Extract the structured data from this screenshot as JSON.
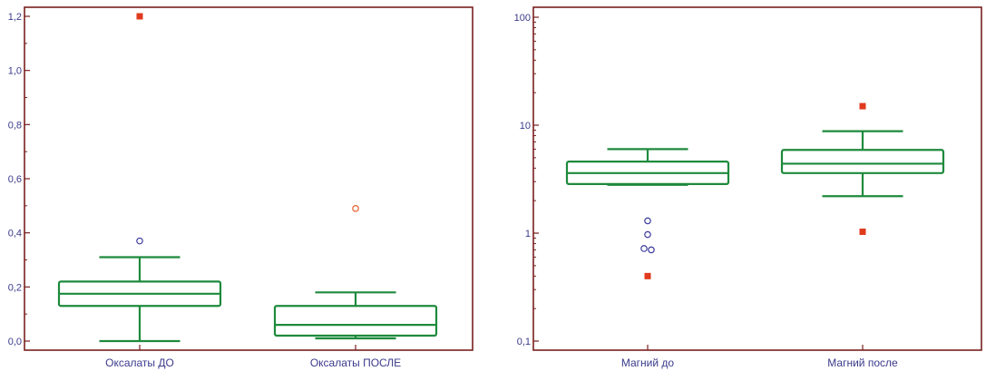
{
  "chart_data": [
    {
      "type": "box",
      "scale": "linear",
      "ylim": [
        0.0,
        1.2
      ],
      "yticks": [
        {
          "value": 0.0,
          "label": "0,0"
        },
        {
          "value": 0.2,
          "label": "0,2"
        },
        {
          "value": 0.4,
          "label": "0,4"
        },
        {
          "value": 0.6,
          "label": "0,6"
        },
        {
          "value": 0.8,
          "label": "0,8"
        },
        {
          "value": 1.0,
          "label": "1,0"
        },
        {
          "value": 1.2,
          "label": "1,2"
        }
      ],
      "categories": [
        "Оксалаты ДО",
        "Оксалаты ПОСЛЕ"
      ],
      "boxes": [
        {
          "whisker_low": 0.0,
          "q1": 0.13,
          "median": 0.175,
          "q3": 0.22,
          "whisker_high": 0.31,
          "outliers": [
            0.37
          ],
          "far_outliers": [
            1.2
          ]
        },
        {
          "whisker_low": 0.01,
          "q1": 0.02,
          "median": 0.06,
          "q3": 0.13,
          "whisker_high": 0.18,
          "outliers": [
            0.49
          ],
          "far_outliers": []
        }
      ],
      "colors": {
        "box": "#1e8a3c",
        "frame": "#7a1f1f",
        "outlier": "#3a3a9c",
        "outlier_alt": "#e8622e",
        "far_outlier": "#e03a1e",
        "text": "#3a3a8c"
      }
    },
    {
      "type": "box",
      "scale": "log",
      "ylim": [
        0.1,
        100
      ],
      "yticks": [
        {
          "value": 0.1,
          "label": "0,1"
        },
        {
          "value": 1,
          "label": "1"
        },
        {
          "value": 10,
          "label": "10"
        },
        {
          "value": 100,
          "label": "100"
        }
      ],
      "categories": [
        "Магний до",
        "Магний после"
      ],
      "boxes": [
        {
          "whisker_low": 2.8,
          "q1": 2.85,
          "median": 3.6,
          "q3": 4.6,
          "whisker_high": 6.0,
          "outliers": [
            1.3,
            0.97,
            0.72,
            0.7
          ],
          "far_outliers": [
            0.4
          ]
        },
        {
          "whisker_low": 2.2,
          "q1": 3.6,
          "median": 4.4,
          "q3": 5.9,
          "whisker_high": 8.8,
          "outliers": [],
          "far_outliers": [
            15,
            1.03
          ]
        }
      ],
      "colors": {
        "box": "#1e8a3c",
        "frame": "#7a1f1f",
        "outlier": "#3a3a9c",
        "outlier_alt": "#e8622e",
        "far_outlier": "#e03a1e",
        "text": "#3a3a8c"
      }
    }
  ]
}
